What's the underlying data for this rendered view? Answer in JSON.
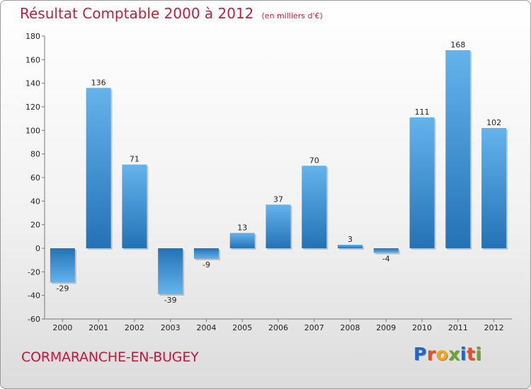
{
  "header": {
    "title": "Résultat Comptable 2000 à 2012",
    "subtitle": "(en milliers d'€)"
  },
  "footer": {
    "commune": "CORMARANCHE-EN-BUGEY",
    "logo_text": "Proxiti",
    "logo_colors": [
      "#1f66c8",
      "#e8501e",
      "#f4a516",
      "#6aa629",
      "#1f66c8",
      "#e8501e",
      "#6aa629"
    ]
  },
  "colors": {
    "bar_top": "#64b3ec",
    "bar_bottom": "#2472b5",
    "text_accent": "#c0203a"
  },
  "chart_data": {
    "type": "bar",
    "categories": [
      "2000",
      "2001",
      "2002",
      "2003",
      "2004",
      "2005",
      "2006",
      "2007",
      "2008",
      "2009",
      "2010",
      "2011",
      "2012"
    ],
    "values": [
      -29,
      136,
      71,
      -39,
      -9,
      13,
      37,
      70,
      3,
      -4,
      111,
      168,
      102
    ],
    "value_labels": [
      "-29",
      "136",
      "71",
      "-39",
      "-9",
      "13",
      "37",
      "70",
      "3",
      "-4",
      "111",
      "168",
      "102"
    ],
    "yticks": [
      -60,
      -40,
      -20,
      0,
      20,
      40,
      60,
      80,
      100,
      120,
      140,
      160,
      180
    ],
    "ylim": [
      -60,
      180
    ],
    "title": "Résultat Comptable 2000 à 2012",
    "xlabel": "",
    "ylabel": "",
    "grid": false,
    "legend": "none"
  }
}
